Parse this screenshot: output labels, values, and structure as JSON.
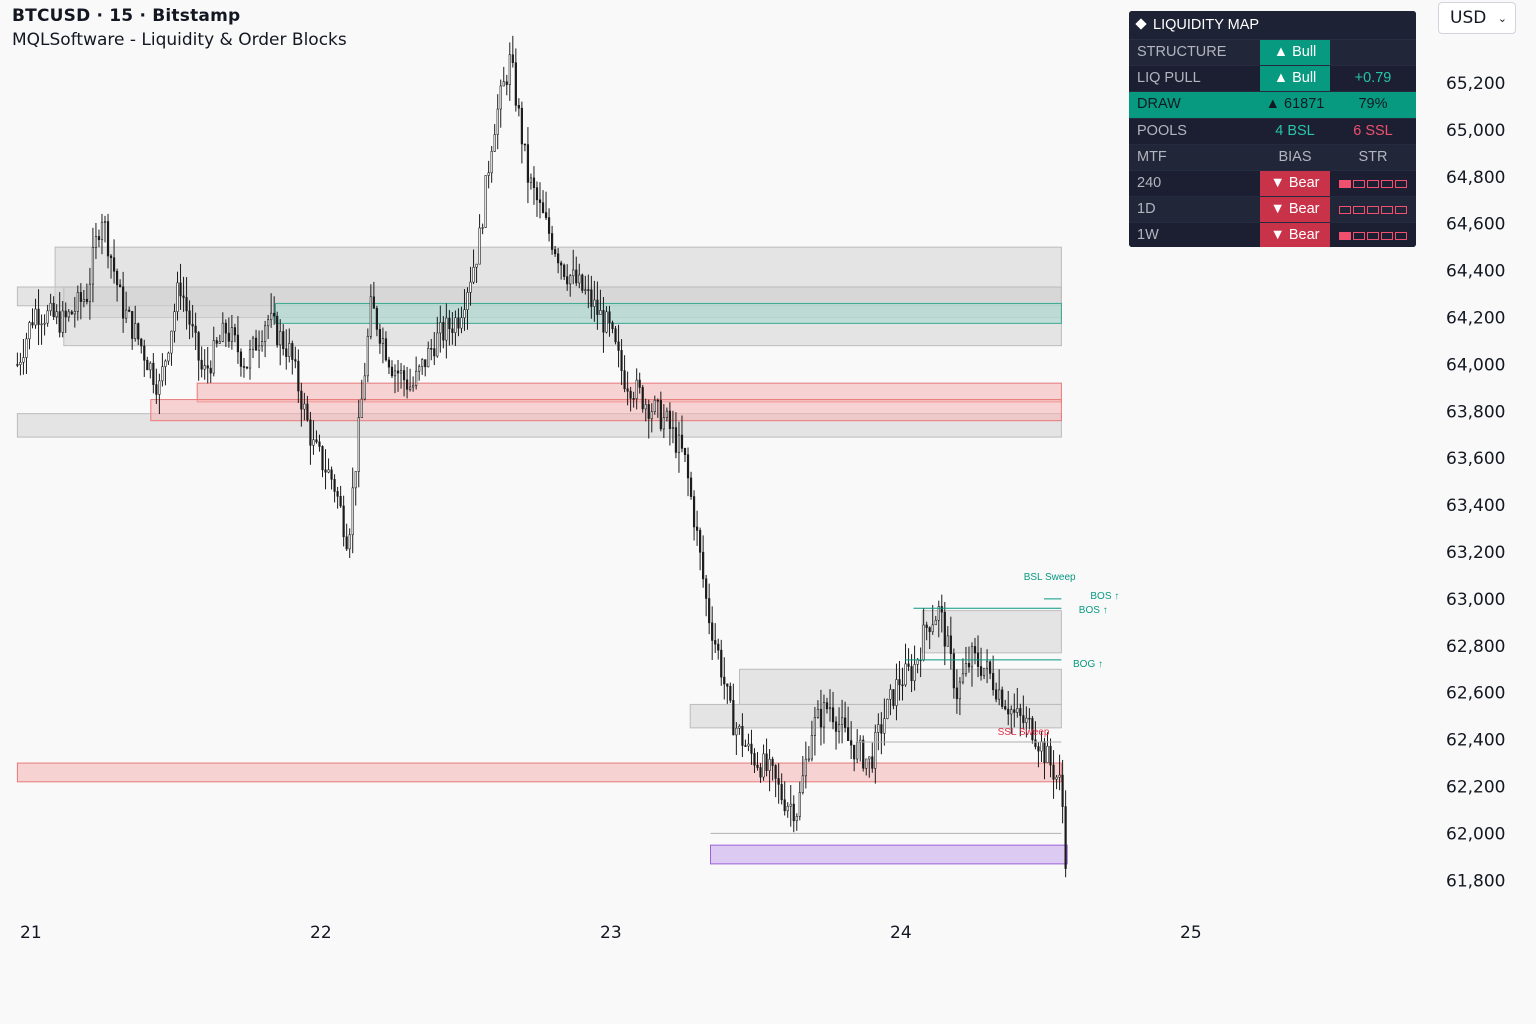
{
  "header": {
    "symbol_line": "BTCUSD · 15 · Bitstamp",
    "indicator_line": "MQLSoftware - Liquidity & Order Blocks"
  },
  "currency": {
    "label": "USD"
  },
  "colors": {
    "bull": "#089981",
    "bear": "#c8334a",
    "panel_bg": "#1e2235",
    "zone_grey": "#cfcfcf",
    "zone_teal": "#a9d9cf",
    "zone_red": "#f5b3b3",
    "zone_purple": "#d2b9ef"
  },
  "panel": {
    "title": "LIQUIDITY MAP",
    "rows": [
      {
        "label": "STRUCTURE",
        "c2": "▲ Bull",
        "c3": ""
      },
      {
        "label": "LIQ PULL",
        "c2": "▲ Bull",
        "c3": "+0.79"
      },
      {
        "label": "DRAW",
        "c2": "▲ 61871",
        "c3": "79%"
      },
      {
        "label": "POOLS",
        "c2": "4 BSL",
        "c3": "6 SSL"
      },
      {
        "label": "MTF",
        "c2": "BIAS",
        "c3": "STR"
      },
      {
        "label": "240",
        "c2": "▼ Bear",
        "str": 1
      },
      {
        "label": "1D",
        "c2": "▼ Bear",
        "str": 0
      },
      {
        "label": "1W",
        "c2": "▼ Bear",
        "str": 1
      }
    ]
  },
  "chart_data": {
    "type": "candlestick",
    "ylim": [
      61700,
      65400
    ],
    "y_ticks": [
      65200,
      65000,
      64800,
      64600,
      64400,
      64200,
      64000,
      63800,
      63600,
      63400,
      63200,
      63000,
      62800,
      62600,
      62400,
      62200,
      62000,
      61800
    ],
    "y_tick_labels": [
      "65,200",
      "65,000",
      "64,800",
      "64,600",
      "64,400",
      "64,200",
      "64,000",
      "63,800",
      "63,600",
      "63,400",
      "63,200",
      "63,000",
      "62,800",
      "62,600",
      "62,400",
      "62,200",
      "62,000",
      "61,800"
    ],
    "x_ticks": [
      {
        "day": 21,
        "label": "21"
      },
      {
        "day": 22,
        "label": "22"
      },
      {
        "day": 23,
        "label": "23"
      },
      {
        "day": 24,
        "label": "24"
      },
      {
        "day": 25,
        "label": "25"
      }
    ],
    "x_range_days": [
      20.96,
      25.21
    ],
    "price_path": [
      [
        20.96,
        64000
      ],
      [
        21.02,
        64230
      ],
      [
        21.12,
        64180
      ],
      [
        21.2,
        64300
      ],
      [
        21.25,
        64650
      ],
      [
        21.32,
        64250
      ],
      [
        21.38,
        64100
      ],
      [
        21.45,
        63900
      ],
      [
        21.52,
        64350
      ],
      [
        21.6,
        63950
      ],
      [
        21.68,
        64150
      ],
      [
        21.75,
        64000
      ],
      [
        21.82,
        64200
      ],
      [
        21.9,
        64050
      ],
      [
        21.98,
        63650
      ],
      [
        22.05,
        63500
      ],
      [
        22.1,
        63250
      ],
      [
        22.18,
        64250
      ],
      [
        22.25,
        64000
      ],
      [
        22.32,
        63900
      ],
      [
        22.4,
        64100
      ],
      [
        22.48,
        64200
      ],
      [
        22.55,
        64500
      ],
      [
        22.6,
        65000
      ],
      [
        22.66,
        65300
      ],
      [
        22.72,
        64800
      ],
      [
        22.78,
        64600
      ],
      [
        22.85,
        64400
      ],
      [
        22.92,
        64300
      ],
      [
        23.0,
        64150
      ],
      [
        23.05,
        63950
      ],
      [
        23.12,
        63850
      ],
      [
        23.2,
        63750
      ],
      [
        23.26,
        63600
      ],
      [
        23.3,
        63300
      ],
      [
        23.34,
        62950
      ],
      [
        23.38,
        62750
      ],
      [
        23.42,
        62500
      ],
      [
        23.48,
        62350
      ],
      [
        23.56,
        62250
      ],
      [
        23.6,
        62150
      ],
      [
        23.65,
        62100
      ],
      [
        23.7,
        62450
      ],
      [
        23.76,
        62550
      ],
      [
        23.82,
        62400
      ],
      [
        23.9,
        62300
      ],
      [
        23.95,
        62500
      ],
      [
        24.0,
        62650
      ],
      [
        24.05,
        62700
      ],
      [
        24.1,
        62900
      ],
      [
        24.14,
        62950
      ],
      [
        24.2,
        62600
      ],
      [
        24.25,
        62750
      ],
      [
        24.3,
        62700
      ],
      [
        24.35,
        62600
      ],
      [
        24.4,
        62500
      ],
      [
        24.46,
        62450
      ],
      [
        24.52,
        62300
      ],
      [
        24.56,
        62200
      ],
      [
        24.58,
        61800
      ]
    ],
    "zones": [
      {
        "kind": "grey",
        "x0": 21.09,
        "x1": 24.56,
        "y_low": 64200,
        "y_high": 64500
      },
      {
        "kind": "grey",
        "x0": 20.96,
        "x1": 24.56,
        "y_low": 64250,
        "y_high": 64330
      },
      {
        "kind": "grey",
        "x0": 21.12,
        "x1": 24.56,
        "y_low": 64080,
        "y_high": 64330
      },
      {
        "kind": "teal",
        "x0": 21.85,
        "x1": 24.56,
        "y_low": 64175,
        "y_high": 64260
      },
      {
        "kind": "grey",
        "x0": 20.96,
        "x1": 24.56,
        "y_low": 63690,
        "y_high": 63790
      },
      {
        "kind": "red",
        "x0": 21.58,
        "x1": 24.56,
        "y_low": 63840,
        "y_high": 63920
      },
      {
        "kind": "red",
        "x0": 21.42,
        "x1": 24.56,
        "y_low": 63760,
        "y_high": 63850
      },
      {
        "kind": "grey",
        "x0": 23.28,
        "x1": 24.56,
        "y_low": 62450,
        "y_high": 62550
      },
      {
        "kind": "grey",
        "x0": 23.45,
        "x1": 24.56,
        "y_low": 62550,
        "y_high": 62700
      },
      {
        "kind": "grey",
        "x0": 24.08,
        "x1": 24.56,
        "y_low": 62770,
        "y_high": 62950
      },
      {
        "kind": "red",
        "x0": 20.96,
        "x1": 24.56,
        "y_low": 62220,
        "y_high": 62300
      },
      {
        "kind": "purple",
        "x0": 23.35,
        "x1": 24.58,
        "y_low": 61870,
        "y_high": 61950
      }
    ],
    "levels": [
      {
        "color": "#089981",
        "x0": 24.05,
        "x1": 24.56,
        "y": 62960
      },
      {
        "color": "#089981",
        "x0": 24.02,
        "x1": 24.56,
        "y": 62740
      },
      {
        "color": "#089981",
        "x0": 24.5,
        "x1": 24.56,
        "y": 63000
      },
      {
        "color": "#b0b0b0",
        "x0": 23.35,
        "x1": 24.56,
        "y": 62000
      },
      {
        "color": "#b0b0b0",
        "x0": 23.85,
        "x1": 24.56,
        "y": 62390
      }
    ],
    "annotations": [
      {
        "text": "BSL Sweep",
        "day": 24.43,
        "y": 63080,
        "color": "#089981"
      },
      {
        "text": "BOS ↑",
        "day": 24.66,
        "y": 63000,
        "color": "#089981"
      },
      {
        "text": "BOS ↑",
        "day": 24.62,
        "y": 62940,
        "color": "#089981"
      },
      {
        "text": "BOG ↑",
        "day": 24.6,
        "y": 62710,
        "color": "#089981"
      },
      {
        "text": "SSL Sweep",
        "day": 24.34,
        "y": 62420,
        "color": "#e0304a"
      }
    ]
  }
}
